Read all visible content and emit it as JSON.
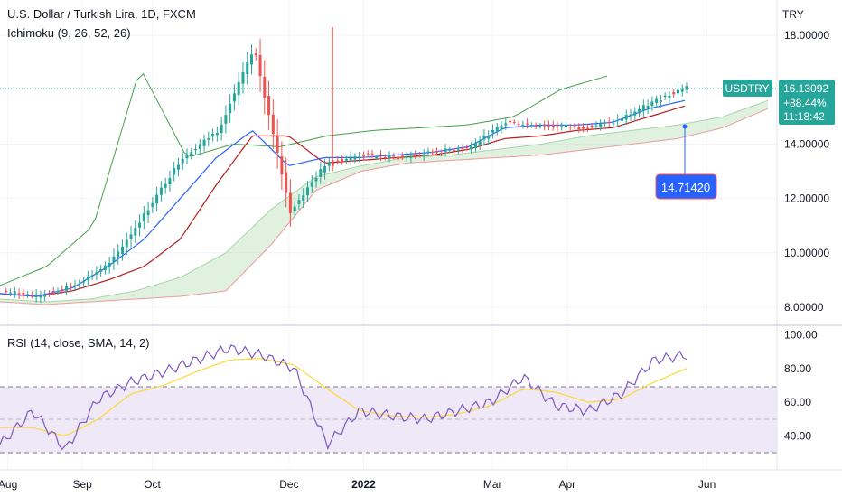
{
  "header": {
    "title": "U.S. Dollar / Turkish Lira, 1D, FXCM",
    "indicator": "Ichimoku (9, 26, 52, 26)",
    "rsi_label": "RSI (14, close, SMA, 14, 2)",
    "currency": "TRY"
  },
  "price_badge": {
    "symbol": "USDTRY",
    "price": "16.13092",
    "change": "+88.44%",
    "countdown": "11:18:42"
  },
  "marker": {
    "label": "14.71420",
    "value": 14.7142
  },
  "colors": {
    "up": "#26a69a",
    "down": "#ef5350",
    "tenkan": "#2962ff",
    "kijun": "#b71c1c",
    "chikou": "#43a047",
    "span_a": "#a5d6a7",
    "span_b": "#ef9a9a",
    "rsi": "#7e57c2",
    "rsi_ma": "#fdd835",
    "band": "#ede7f6",
    "accent": "#2962ff"
  },
  "chart_data": [
    {
      "type": "candlestick",
      "title": "U.S. Dollar / Turkish Lira, 1D, FXCM",
      "ylabel": "TRY",
      "x_ticks": [
        "Aug",
        "Sep",
        "Oct",
        "Dec",
        "2022",
        "Mar",
        "Apr",
        "Jun"
      ],
      "y_ticks": [
        "8.00000",
        "10.00000",
        "12.00000",
        "14.00000",
        "18.00000"
      ],
      "ylim": [
        7.2,
        19.0
      ],
      "last_price": 16.13092,
      "series": [
        {
          "name": "Close",
          "x": [
            "Aug 1",
            "Sep 1",
            "Oct 1",
            "Nov 1",
            "Nov 15",
            "Nov 30",
            "Dec 10",
            "Dec 20",
            "Dec 25",
            "Jan 1",
            "Jan 15",
            "Feb 1",
            "Feb 15",
            "Mar 1",
            "Mar 15",
            "Apr 1",
            "Apr 15",
            "May 1",
            "May 15",
            "May 27"
          ],
          "values": [
            8.6,
            8.4,
            8.8,
            9.6,
            11.5,
            13.5,
            14.5,
            17.5,
            11.5,
            13.3,
            13.6,
            13.5,
            13.7,
            13.9,
            14.8,
            14.7,
            14.6,
            14.8,
            15.5,
            16.13
          ]
        },
        {
          "name": "Tenkan",
          "values": [
            8.5,
            8.4,
            8.7,
            9.5,
            10.5,
            12.0,
            13.5,
            14.5,
            13.2,
            13.5,
            13.5,
            13.6,
            13.7,
            13.9,
            14.6,
            14.7,
            14.7,
            14.8,
            15.3,
            15.6
          ]
        },
        {
          "name": "Kijun",
          "values": [
            8.5,
            8.4,
            8.6,
            9.0,
            9.5,
            10.5,
            12.5,
            14.3,
            14.3,
            13.3,
            13.4,
            13.5,
            13.6,
            13.8,
            14.2,
            14.3,
            14.5,
            14.6,
            15.0,
            15.4
          ]
        },
        {
          "name": "Chikou",
          "values": [
            8.8,
            9.5,
            11.0,
            16.8,
            13.5,
            14.0,
            13.9,
            14.3,
            14.5,
            14.6,
            14.7,
            15.0,
            16.0,
            16.5
          ]
        }
      ]
    },
    {
      "type": "line",
      "title": "RSI (14, close, SMA, 14, 2)",
      "y_ticks": [
        "40.00",
        "60.00",
        "80.00",
        "100.00"
      ],
      "ylim": [
        20,
        100
      ],
      "bands": [
        30,
        50,
        70
      ],
      "series": [
        {
          "name": "RSI",
          "x": [
            "Aug 1",
            "Aug 15",
            "Sep 1",
            "Sep 15",
            "Oct 1",
            "Oct 15",
            "Nov 1",
            "Nov 15",
            "Dec 1",
            "Dec 15",
            "Dec 23",
            "Jan 1",
            "Jan 15",
            "Feb 1",
            "Feb 15",
            "Mar 1",
            "Mar 15",
            "Apr 1",
            "Apr 15",
            "May 1",
            "May 15",
            "May 27"
          ],
          "values": [
            35,
            55,
            32,
            62,
            72,
            78,
            85,
            92,
            88,
            80,
            35,
            55,
            52,
            50,
            55,
            60,
            75,
            58,
            55,
            65,
            85,
            88
          ]
        },
        {
          "name": "RSI MA",
          "values": [
            45,
            45,
            40,
            50,
            65,
            70,
            78,
            85,
            86,
            82,
            68,
            55,
            52,
            51,
            53,
            58,
            68,
            66,
            60,
            62,
            72,
            80
          ]
        }
      ]
    }
  ]
}
